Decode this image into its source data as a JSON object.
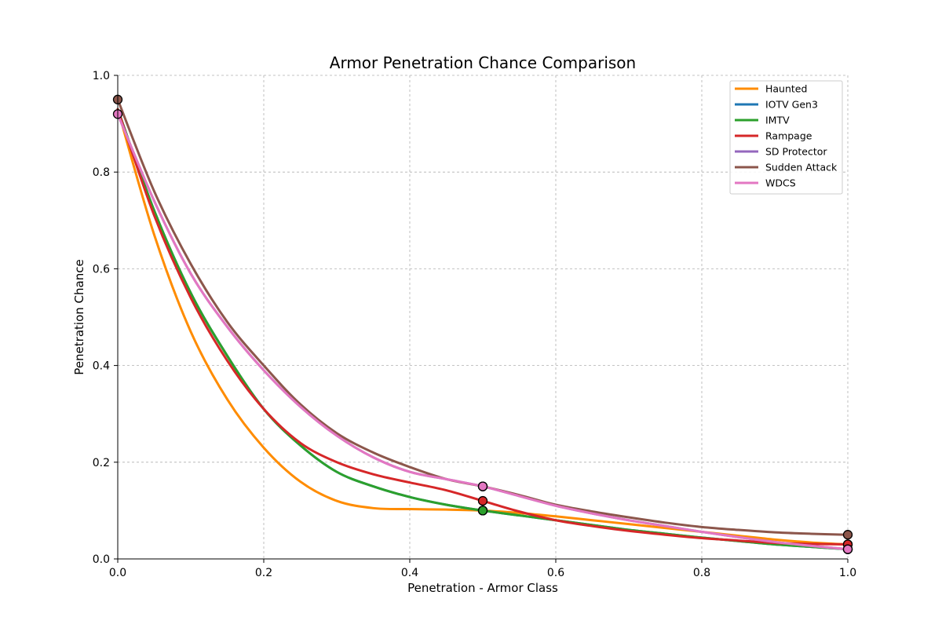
{
  "chart_data": {
    "type": "line",
    "title": "Armor Penetration Chance Comparison",
    "xlabel": "Penetration - Armor Class",
    "ylabel": "Penetration Chance",
    "xlim": [
      0,
      1
    ],
    "ylim": [
      0,
      1
    ],
    "xticks": [
      "0.0",
      "0.2",
      "0.4",
      "0.6",
      "0.8",
      "1.0"
    ],
    "yticks": [
      "0.0",
      "0.2",
      "0.4",
      "0.6",
      "0.8",
      "1.0"
    ],
    "grid": true,
    "legend_position": "top-right",
    "x": [
      0.0,
      0.05,
      0.1,
      0.15,
      0.2,
      0.25,
      0.3,
      0.35,
      0.4,
      0.45,
      0.5,
      0.55,
      0.6,
      0.65,
      0.7,
      0.75,
      0.8,
      0.85,
      0.9,
      0.95,
      1.0
    ],
    "series": [
      {
        "name": "Haunted",
        "color": "#ff8c00",
        "values": [
          0.93,
          0.67,
          0.47,
          0.33,
          0.23,
          0.16,
          0.12,
          0.105,
          0.103,
          0.102,
          0.1,
          0.095,
          0.088,
          0.08,
          0.072,
          0.064,
          0.056,
          0.048,
          0.04,
          0.034,
          0.03
        ],
        "markers": [
          [
            0.5,
            0.1
          ],
          [
            1.0,
            0.03
          ]
        ]
      },
      {
        "name": "IOTV Gen3",
        "color": "#1f77b4",
        "values": [
          0.93,
          0.72,
          0.55,
          0.42,
          0.31,
          0.235,
          0.18,
          0.15,
          0.128,
          0.112,
          0.1,
          0.09,
          0.08,
          0.07,
          0.06,
          0.052,
          0.044,
          0.037,
          0.03,
          0.025,
          0.02
        ],
        "markers": [
          [
            0.5,
            0.1
          ],
          [
            1.0,
            0.02
          ]
        ]
      },
      {
        "name": "IMTV",
        "color": "#2ca02c",
        "values": [
          0.93,
          0.72,
          0.55,
          0.42,
          0.31,
          0.235,
          0.18,
          0.15,
          0.128,
          0.112,
          0.1,
          0.09,
          0.08,
          0.07,
          0.06,
          0.052,
          0.044,
          0.037,
          0.03,
          0.025,
          0.02
        ],
        "markers": [
          [
            0.5,
            0.1
          ],
          [
            1.0,
            0.02
          ]
        ]
      },
      {
        "name": "Rampage",
        "color": "#d62728",
        "values": [
          0.93,
          0.71,
          0.54,
          0.41,
          0.31,
          0.24,
          0.2,
          0.175,
          0.158,
          0.142,
          0.12,
          0.098,
          0.08,
          0.068,
          0.058,
          0.05,
          0.043,
          0.038,
          0.033,
          0.031,
          0.03
        ],
        "markers": [
          [
            0.5,
            0.12
          ],
          [
            1.0,
            0.03
          ]
        ]
      },
      {
        "name": "SD Protector",
        "color": "#9467bd",
        "values": [
          0.92,
          0.74,
          0.59,
          0.48,
          0.39,
          0.315,
          0.255,
          0.21,
          0.18,
          0.165,
          0.15,
          0.13,
          0.11,
          0.094,
          0.08,
          0.068,
          0.056,
          0.045,
          0.035,
          0.027,
          0.02
        ],
        "markers": [
          [
            0.5,
            0.15
          ],
          [
            1.0,
            0.02
          ]
        ]
      },
      {
        "name": "Sudden Attack",
        "color": "#8c564b",
        "values": [
          0.95,
          0.76,
          0.61,
          0.49,
          0.4,
          0.32,
          0.26,
          0.22,
          0.19,
          0.165,
          0.15,
          0.132,
          0.112,
          0.098,
          0.086,
          0.075,
          0.066,
          0.06,
          0.055,
          0.052,
          0.05
        ],
        "markers": [
          [
            0.0,
            0.95
          ],
          [
            0.5,
            0.15
          ],
          [
            1.0,
            0.05
          ]
        ]
      },
      {
        "name": "WDCS",
        "color": "#e377c2",
        "values": [
          0.92,
          0.74,
          0.59,
          0.48,
          0.39,
          0.315,
          0.255,
          0.21,
          0.18,
          0.165,
          0.15,
          0.13,
          0.11,
          0.094,
          0.08,
          0.068,
          0.056,
          0.045,
          0.035,
          0.027,
          0.02
        ],
        "markers": [
          [
            0.0,
            0.92
          ],
          [
            0.5,
            0.15
          ],
          [
            1.0,
            0.02
          ]
        ]
      }
    ]
  }
}
